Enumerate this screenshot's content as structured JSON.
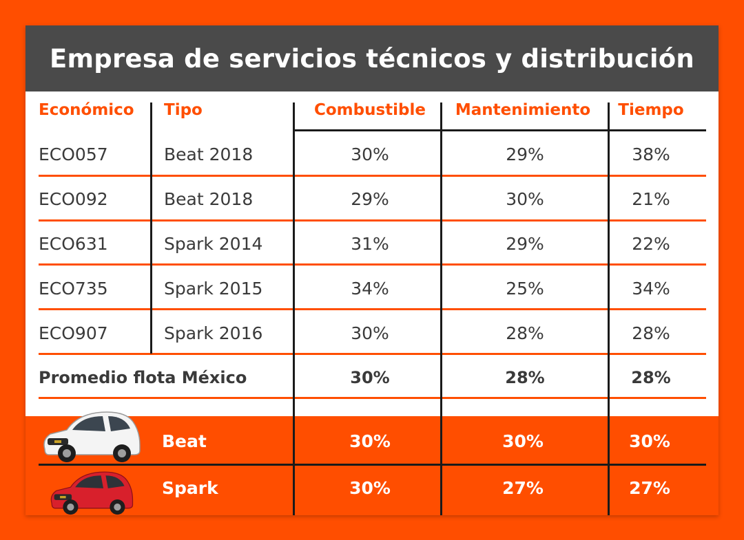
{
  "title": "Empresa de servicios técnicos y distribución",
  "columns": [
    "Económico",
    "Tipo",
    "Combustible",
    "Mantenimiento",
    "Tiempo"
  ],
  "rows": [
    {
      "economico": "ECO057",
      "tipo": "Beat 2018",
      "combustible": "30%",
      "mantenimiento": "29%",
      "tiempo": "38%"
    },
    {
      "economico": "ECO092",
      "tipo": "Beat 2018",
      "combustible": "29%",
      "mantenimiento": "30%",
      "tiempo": "21%"
    },
    {
      "economico": "ECO631",
      "tipo": "Spark 2014",
      "combustible": "31%",
      "mantenimiento": "29%",
      "tiempo": "22%"
    },
    {
      "economico": "ECO735",
      "tipo": "Spark 2015",
      "combustible": "34%",
      "mantenimiento": "25%",
      "tiempo": "34%"
    },
    {
      "economico": "ECO907",
      "tipo": "Spark 2016",
      "combustible": "30%",
      "mantenimiento": "28%",
      "tiempo": "28%"
    }
  ],
  "promedio": {
    "label": "Promedio flota México",
    "combustible": "30%",
    "mantenimiento": "28%",
    "tiempo": "28%"
  },
  "models": [
    {
      "name": "Beat",
      "car_color": "white",
      "combustible": "30%",
      "mantenimiento": "30%",
      "tiempo": "30%"
    },
    {
      "name": "Spark",
      "car_color": "red",
      "combustible": "30%",
      "mantenimiento": "27%",
      "tiempo": "27%"
    }
  ],
  "colors": {
    "accent": "#ff4e00",
    "title_bg": "#4a4a4a",
    "text": "#3a3a3a",
    "white": "#ffffff"
  }
}
